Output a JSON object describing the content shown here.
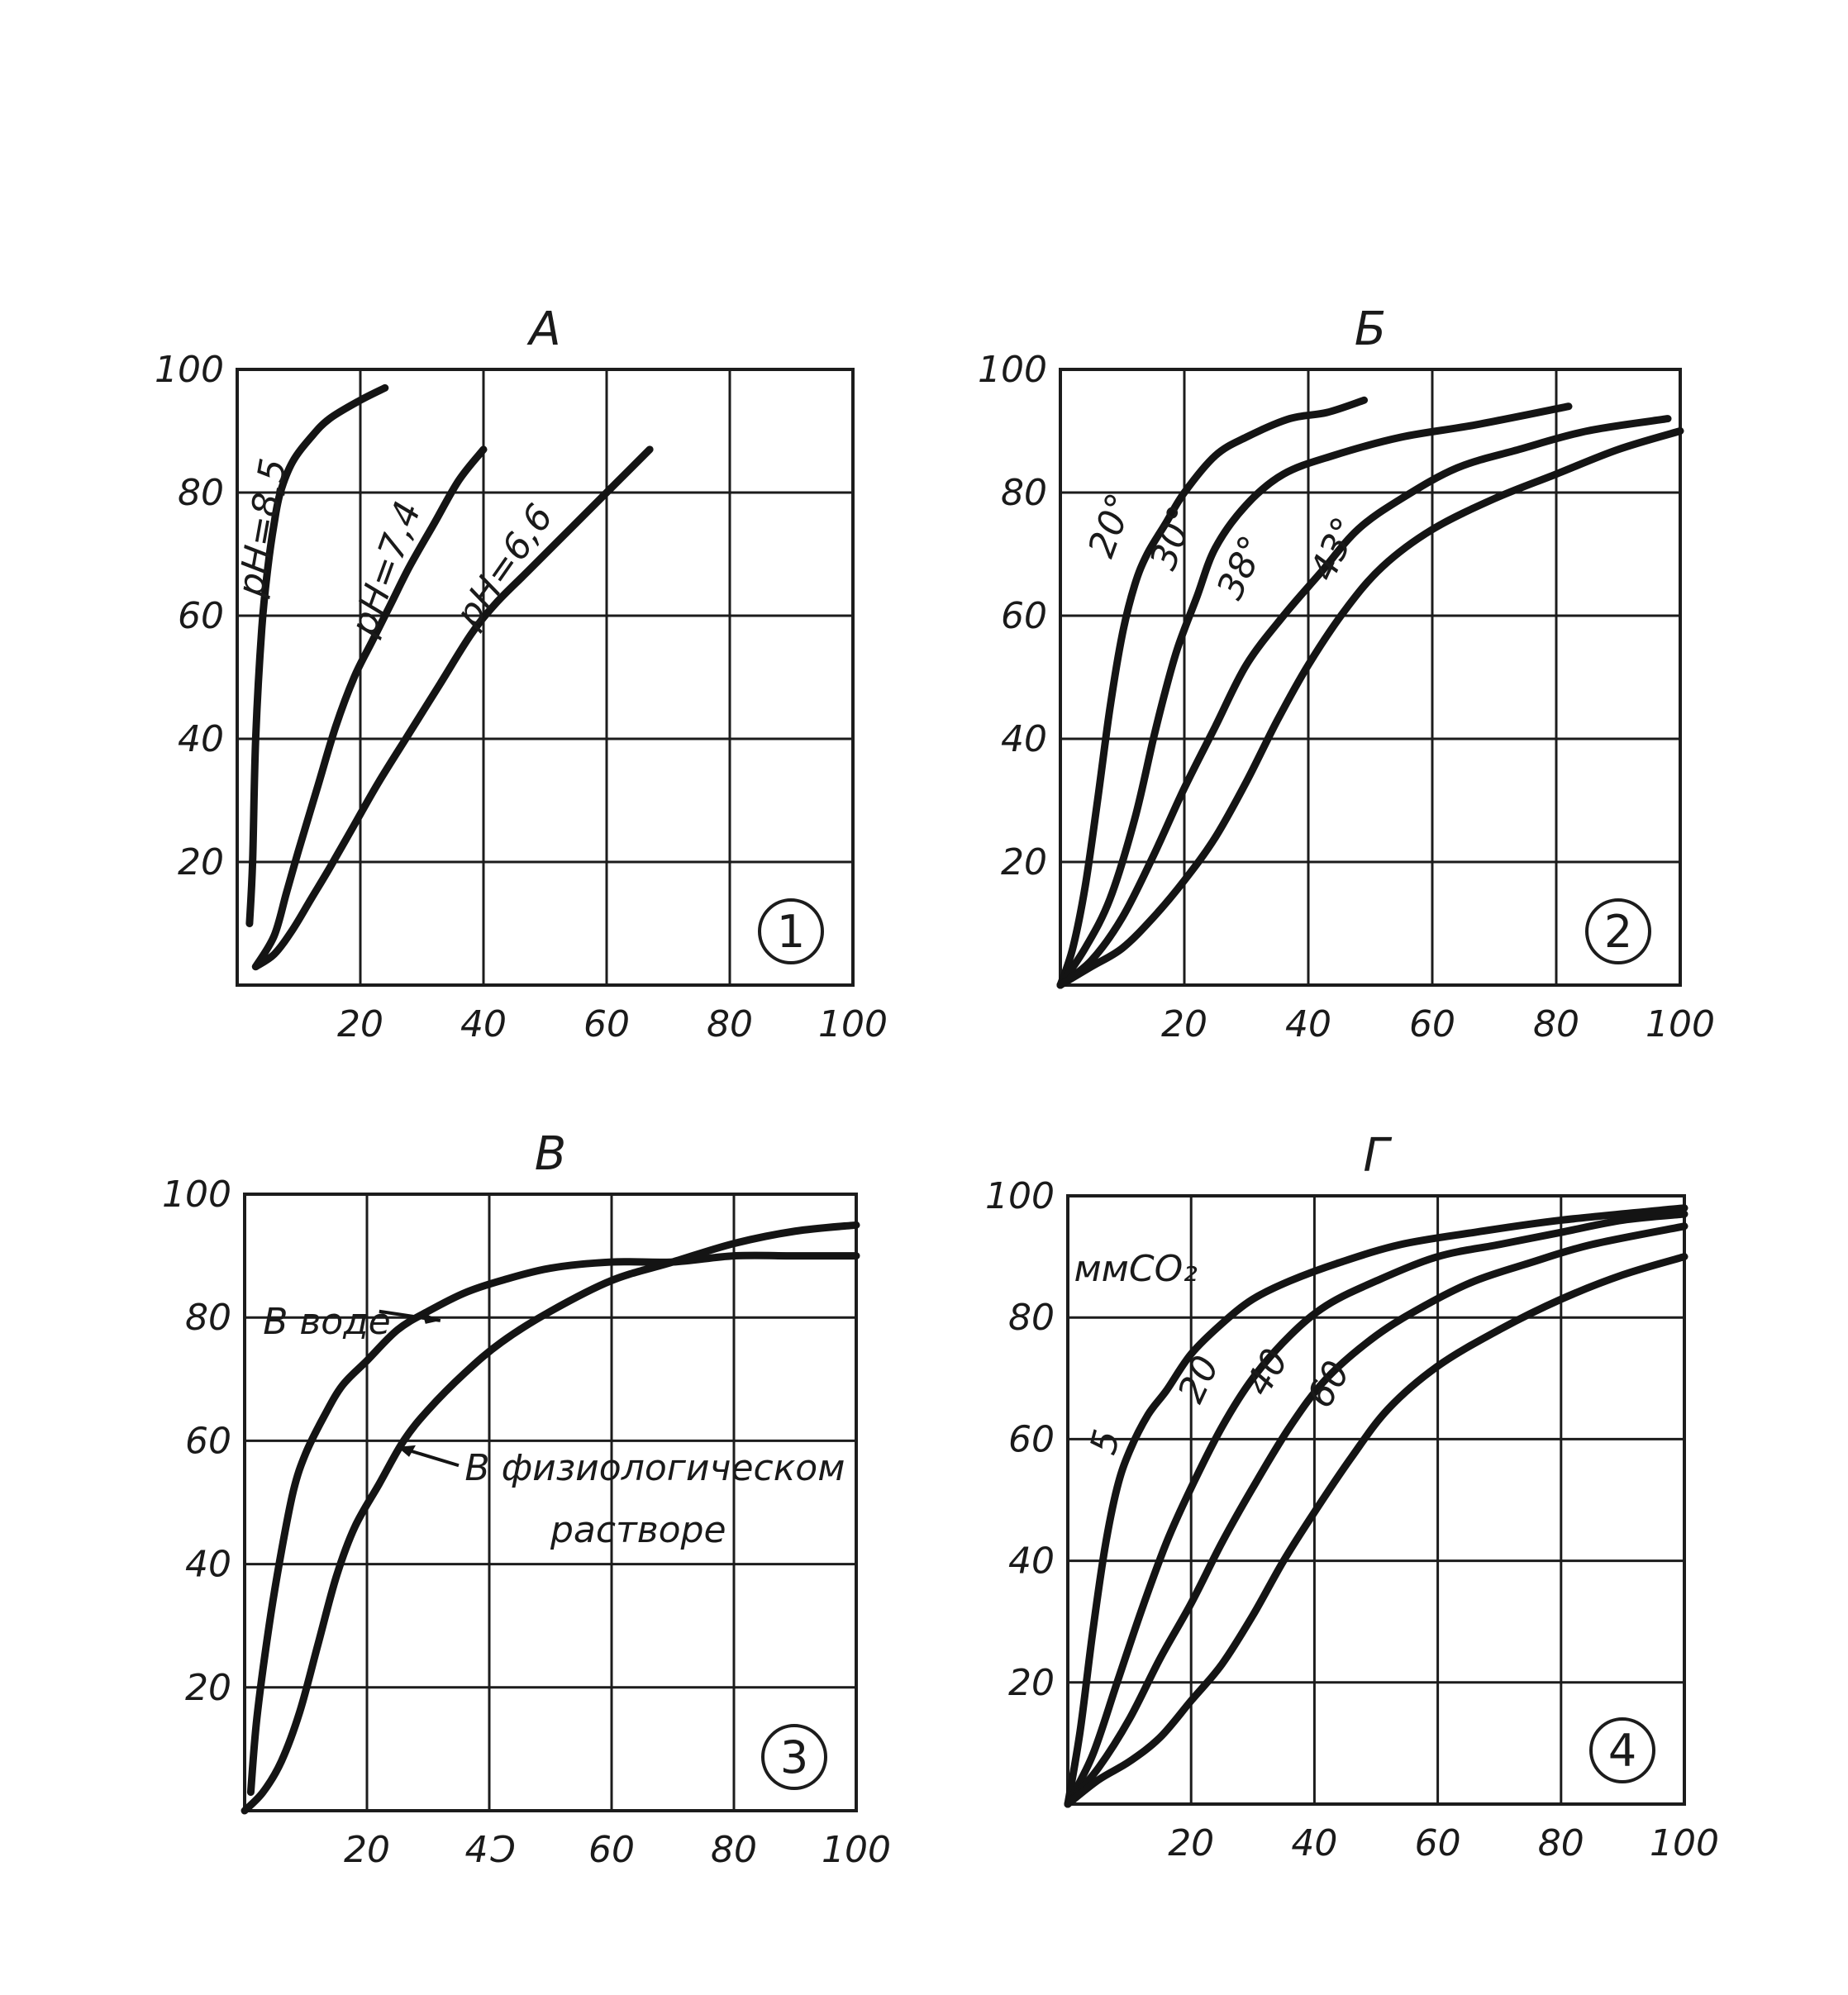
{
  "chart_data": [
    {
      "type": "line",
      "title": "А",
      "badge": "1",
      "xlim": [
        0,
        100
      ],
      "ylim": [
        0,
        100
      ],
      "xticks": [
        "20",
        "40",
        "60",
        "80",
        "100"
      ],
      "yticks": [
        "20",
        "40",
        "60",
        "80",
        "100"
      ],
      "grid": true,
      "series": [
        {
          "name": "pH=8,5",
          "x": [
            2,
            2.5,
            3,
            4,
            5,
            6,
            7,
            9,
            12,
            15,
            20,
            24
          ],
          "y": [
            10,
            20,
            40,
            58,
            68,
            75,
            80,
            85,
            89,
            92,
            95,
            97
          ]
        },
        {
          "name": "pH=7,4",
          "x": [
            3,
            6,
            8,
            10,
            13,
            16,
            19,
            22,
            25,
            28,
            32,
            36,
            40
          ],
          "y": [
            3,
            8,
            15,
            22,
            32,
            42,
            50,
            56,
            62,
            68,
            75,
            82,
            87
          ]
        },
        {
          "name": "pH=6,6",
          "x": [
            3,
            6,
            9,
            12,
            15,
            19,
            23,
            28,
            33,
            38,
            42,
            47,
            52,
            57,
            62,
            67
          ],
          "y": [
            3,
            5,
            9,
            14,
            19,
            26,
            33,
            41,
            49,
            57,
            62,
            67,
            72,
            77,
            82,
            87
          ]
        }
      ]
    },
    {
      "type": "line",
      "title": "Б",
      "badge": "2",
      "xlim": [
        0,
        100
      ],
      "ylim": [
        0,
        100
      ],
      "xticks": [
        "20",
        "40",
        "60",
        "80",
        "100"
      ],
      "yticks": [
        "20",
        "40",
        "60",
        "80",
        "100"
      ],
      "grid": true,
      "series": [
        {
          "name": "20°",
          "x": [
            0,
            2,
            4,
            6,
            8,
            10,
            12,
            14,
            17,
            20,
            25,
            30,
            37,
            43,
            49
          ],
          "y": [
            0,
            6,
            16,
            30,
            45,
            57,
            65,
            70,
            75,
            80,
            86,
            89,
            92,
            93,
            95
          ]
        },
        {
          "name": "30°",
          "x": [
            0,
            4,
            8,
            12,
            15,
            17,
            19,
            22,
            25,
            30,
            36,
            44,
            55,
            67,
            82
          ],
          "y": [
            0,
            6,
            14,
            27,
            40,
            48,
            55,
            63,
            71,
            78,
            83,
            86,
            89,
            91,
            94
          ]
        },
        {
          "name": "38°",
          "x": [
            0,
            5,
            10,
            15,
            20,
            25,
            30,
            36,
            42,
            48,
            55,
            64,
            74,
            85,
            98
          ],
          "y": [
            0,
            4,
            11,
            21,
            32,
            42,
            52,
            60,
            67,
            74,
            79,
            84,
            87,
            90,
            92
          ]
        },
        {
          "name": "43°",
          "x": [
            0,
            5,
            10,
            15,
            20,
            25,
            30,
            35,
            40,
            46,
            52,
            60,
            70,
            80,
            90,
            100
          ],
          "y": [
            0,
            3,
            6,
            11,
            17,
            24,
            33,
            43,
            52,
            61,
            68,
            74,
            79,
            83,
            87,
            90
          ]
        }
      ]
    },
    {
      "type": "line",
      "title": "В",
      "badge": "3",
      "xlim": [
        0,
        100
      ],
      "ylim": [
        0,
        100
      ],
      "xticks": [
        "20",
        "4Ɔ",
        "60",
        "80",
        "100"
      ],
      "yticks": [
        "20",
        "40",
        "60",
        "80",
        "100"
      ],
      "grid": true,
      "annotations": [
        "В воде",
        "В физиологическом",
        "растворе"
      ],
      "series": [
        {
          "name": "В воде",
          "x": [
            1,
            2,
            4,
            6,
            8,
            10,
            13,
            16,
            20,
            25,
            30,
            36,
            42,
            50,
            60,
            70,
            80,
            90,
            100
          ],
          "y": [
            3,
            15,
            30,
            42,
            52,
            58,
            64,
            69,
            73,
            78,
            81,
            84,
            86,
            88,
            89,
            89,
            90,
            90,
            90
          ]
        },
        {
          "name": "В физиологическом растворе",
          "x": [
            0,
            3,
            6,
            9,
            12,
            15,
            18,
            22,
            26,
            30,
            36,
            42,
            50,
            60,
            70,
            80,
            90,
            100
          ],
          "y": [
            0,
            3,
            8,
            16,
            27,
            38,
            46,
            53,
            60,
            65,
            71,
            76,
            81,
            86,
            89,
            92,
            94,
            95
          ]
        }
      ]
    },
    {
      "type": "line",
      "title": "Г",
      "badge": "4",
      "xlim": [
        0,
        100
      ],
      "ylim": [
        0,
        100
      ],
      "xticks": [
        "20",
        "40",
        "60",
        "80",
        "100"
      ],
      "yticks": [
        "20",
        "40",
        "60",
        "80",
        "100"
      ],
      "grid": true,
      "legend_title": "ммCO₂",
      "series": [
        {
          "name": "5",
          "x": [
            0,
            2,
            4,
            6,
            8,
            10,
            13,
            16,
            20,
            25,
            30,
            36,
            44,
            54,
            66,
            80,
            100
          ],
          "y": [
            0,
            12,
            28,
            42,
            52,
            58,
            64,
            68,
            74,
            79,
            83,
            86,
            89,
            92,
            94,
            96,
            98
          ]
        },
        {
          "name": "20",
          "x": [
            0,
            4,
            8,
            12,
            16,
            20,
            25,
            30,
            36,
            42,
            50,
            60,
            70,
            80,
            90,
            100
          ],
          "y": [
            0,
            8,
            20,
            32,
            43,
            52,
            62,
            70,
            77,
            82,
            86,
            90,
            92,
            94,
            96,
            97
          ]
        },
        {
          "name": "40",
          "x": [
            0,
            5,
            10,
            15,
            20,
            25,
            30,
            36,
            42,
            50,
            58,
            66,
            75,
            85,
            100
          ],
          "y": [
            0,
            6,
            14,
            24,
            33,
            43,
            52,
            62,
            70,
            77,
            82,
            86,
            89,
            92,
            95
          ]
        },
        {
          "name": "60",
          "x": [
            0,
            5,
            10,
            15,
            20,
            25,
            30,
            35,
            40,
            46,
            52,
            60,
            70,
            80,
            90,
            100
          ],
          "y": [
            0,
            4,
            7,
            11,
            17,
            23,
            31,
            40,
            48,
            57,
            65,
            72,
            78,
            83,
            87,
            90
          ]
        }
      ]
    }
  ]
}
